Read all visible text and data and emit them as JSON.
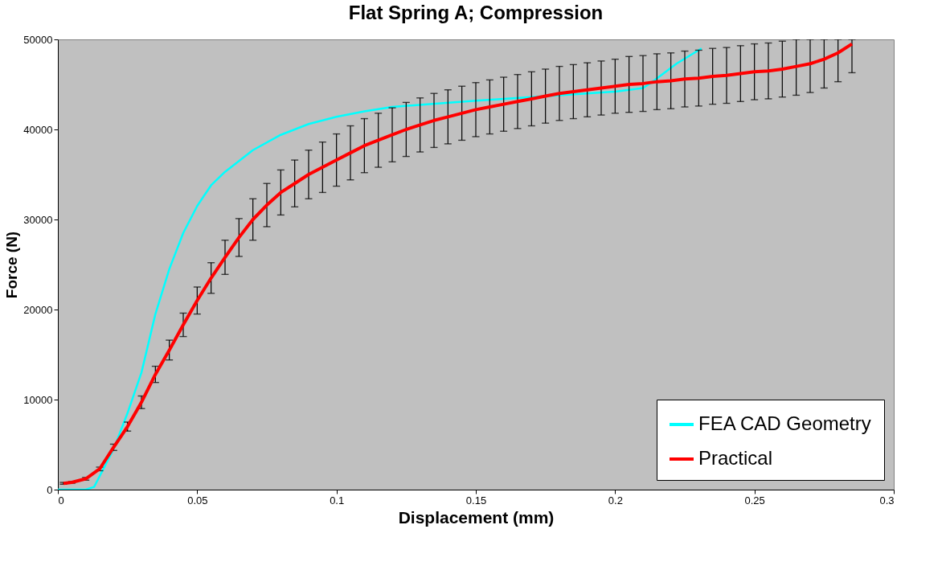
{
  "chart_data": {
    "type": "line",
    "title": "Flat Spring A; Compression",
    "xlabel": "Displacement (mm)",
    "ylabel": "Force (N)",
    "xlim": [
      0,
      0.3
    ],
    "xticks": [
      0,
      0.05,
      0.1,
      0.15,
      0.2,
      0.25,
      0.3
    ],
    "ylim": [
      0,
      50000
    ],
    "yticks": [
      0,
      10000,
      20000,
      30000,
      40000,
      50000
    ],
    "grid": false,
    "legend": "bottom right",
    "marker": "none",
    "line_style": "solid",
    "series": [
      {
        "name": "FEA CAD Geometry",
        "color": "#00ffff",
        "x": [
          0,
          0.01,
          0.013,
          0.015,
          0.02,
          0.025,
          0.03,
          0.035,
          0.04,
          0.045,
          0.05,
          0.055,
          0.06,
          0.07,
          0.08,
          0.09,
          0.1,
          0.11,
          0.12,
          0.15,
          0.18,
          0.2,
          0.21,
          0.213,
          0.222,
          0.231
        ],
        "values": [
          0,
          0,
          300,
          1500,
          4500,
          8500,
          13000,
          19500,
          24500,
          28500,
          31500,
          33800,
          35300,
          37700,
          39400,
          40600,
          41400,
          42000,
          42500,
          43200,
          43800,
          44200,
          44600,
          45200,
          47300,
          49000
        ]
      },
      {
        "name": "Practical",
        "color": "#ff0000",
        "x": [
          0.002,
          0.005,
          0.01,
          0.015,
          0.02,
          0.025,
          0.03,
          0.035,
          0.04,
          0.045,
          0.05,
          0.055,
          0.06,
          0.065,
          0.07,
          0.075,
          0.08,
          0.085,
          0.09,
          0.095,
          0.1,
          0.105,
          0.11,
          0.115,
          0.12,
          0.125,
          0.13,
          0.135,
          0.14,
          0.145,
          0.15,
          0.155,
          0.16,
          0.165,
          0.17,
          0.175,
          0.18,
          0.185,
          0.19,
          0.195,
          0.2,
          0.205,
          0.21,
          0.215,
          0.22,
          0.225,
          0.23,
          0.235,
          0.24,
          0.245,
          0.25,
          0.255,
          0.26,
          0.265,
          0.27,
          0.275,
          0.28,
          0.285
        ],
        "values": [
          700,
          800,
          1200,
          2300,
          4700,
          7000,
          9700,
          12800,
          15500,
          18300,
          21000,
          23500,
          25800,
          28000,
          30000,
          31600,
          33000,
          34000,
          35000,
          35800,
          36600,
          37400,
          38200,
          38800,
          39400,
          40000,
          40500,
          41000,
          41400,
          41800,
          42200,
          42500,
          42800,
          43100,
          43400,
          43700,
          44000,
          44200,
          44400,
          44600,
          44800,
          45000,
          45100,
          45300,
          45400,
          45600,
          45700,
          45900,
          46000,
          46200,
          46400,
          46500,
          46700,
          47000,
          47300,
          47800,
          48500,
          49500
        ],
        "errors": [
          100,
          100,
          150,
          200,
          350,
          500,
          700,
          900,
          1100,
          1300,
          1500,
          1700,
          1900,
          2100,
          2300,
          2400,
          2500,
          2600,
          2700,
          2800,
          2900,
          3000,
          3000,
          3000,
          3000,
          3000,
          3000,
          3000,
          3000,
          3000,
          3000,
          3000,
          3000,
          3000,
          3000,
          3000,
          3000,
          3000,
          3000,
          3000,
          3000,
          3100,
          3100,
          3100,
          3100,
          3100,
          3100,
          3100,
          3100,
          3100,
          3100,
          3100,
          3100,
          [
            43800,
            50000
          ],
          [
            44100,
            50000
          ],
          [
            44600,
            50000
          ],
          [
            45300,
            50000
          ],
          [
            46300,
            50000
          ]
        ]
      }
    ]
  }
}
